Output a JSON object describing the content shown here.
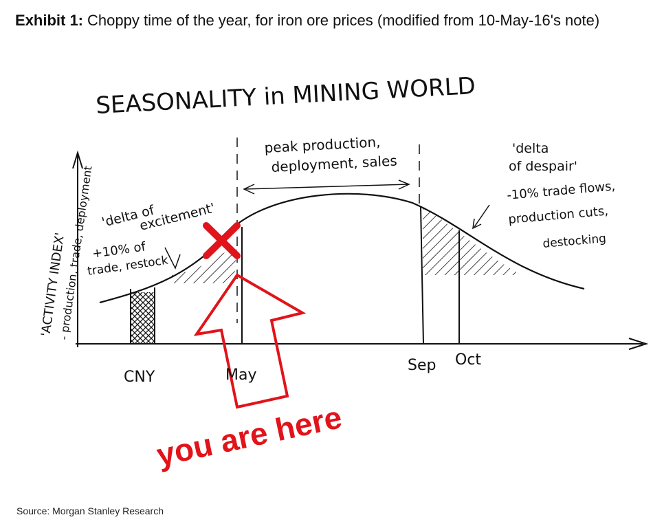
{
  "header": {
    "label": "Exhibit 1:",
    "title": "Choppy time of the year, for iron ore prices (modified from 10-May-16's note)"
  },
  "sketch": {
    "title": "SEASONALITY in MINING WORLD",
    "y_axis": [
      "'ACTIVITY INDEX'",
      "- production, trade, deployment"
    ],
    "peak": [
      "peak production,",
      "deployment, sales"
    ],
    "excitement": [
      "'delta of",
      "excitement'"
    ],
    "up": [
      "+10% of",
      "trade, restock"
    ],
    "despair": [
      "'delta",
      "of despair'",
      "-10% trade flows,",
      "production cuts,",
      "destocking"
    ],
    "x_labels": [
      "CNY",
      "May",
      "Sep",
      "Oct"
    ]
  },
  "callout": "you are here",
  "source": "Source: Morgan Stanley Research"
}
